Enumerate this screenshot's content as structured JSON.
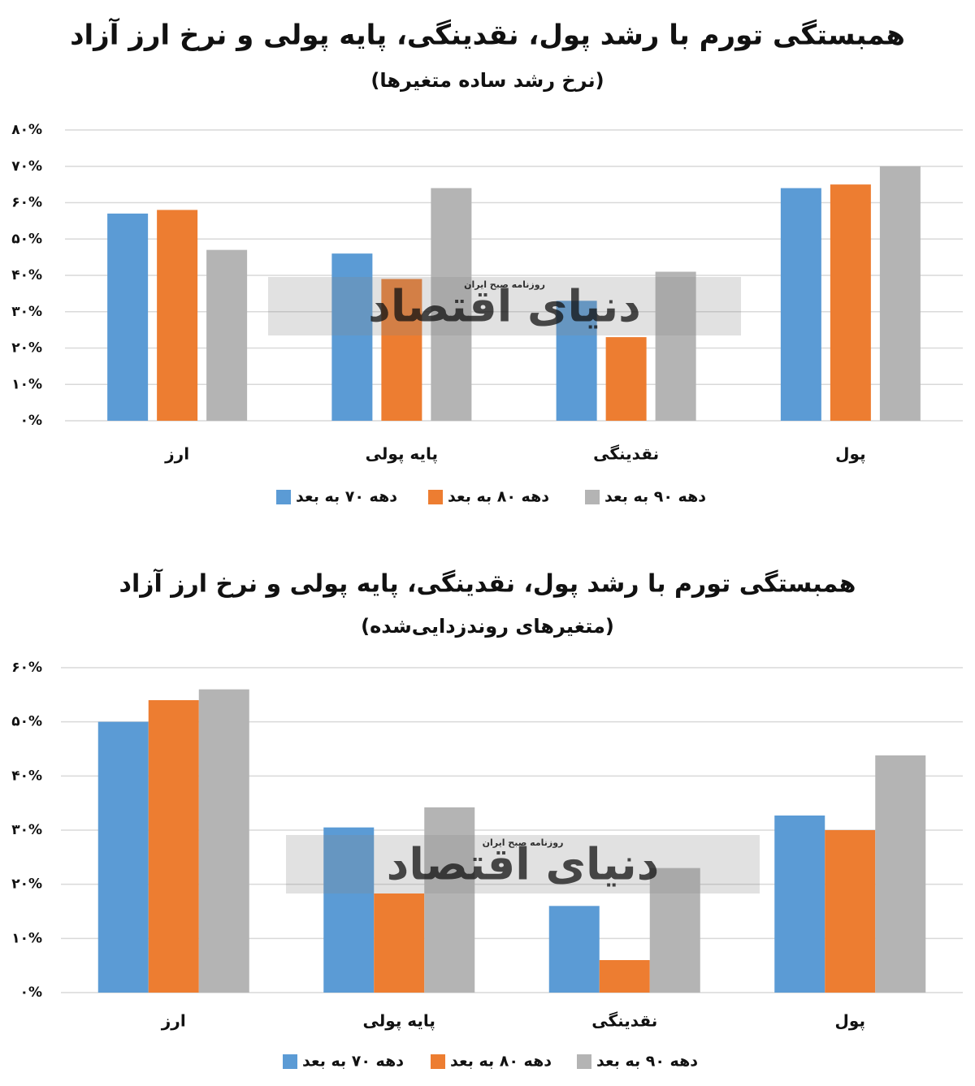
{
  "chart_data": [
    {
      "type": "bar",
      "title": "همبستگی تورم با رشد پول، نقدینگی، پایه پولی و نرخ ارز آزاد",
      "subtitle": "(نرخ رشد ساده متغیرها)",
      "categories": [
        "ارز",
        "پایه پولی",
        "نقدینگی",
        "پول"
      ],
      "series": [
        {
          "name": "دهه ۷۰ به بعد",
          "color": "#5b9bd5",
          "values": [
            57,
            46,
            33,
            64
          ]
        },
        {
          "name": "دهه ۸۰ به بعد",
          "color": "#ed7d31",
          "values": [
            58,
            39,
            23,
            65
          ]
        },
        {
          "name": "دهه ۹۰ به بعد",
          "color": "#b4b4b4",
          "values": [
            47,
            64,
            41,
            70
          ]
        }
      ],
      "ylim": [
        0,
        80
      ],
      "yticks": [
        {
          "value": 0,
          "label": "۰%"
        },
        {
          "value": 10,
          "label": "۱۰%"
        },
        {
          "value": 20,
          "label": "۲۰%"
        },
        {
          "value": 30,
          "label": "۳۰%"
        },
        {
          "value": 40,
          "label": "۴۰%"
        },
        {
          "value": 50,
          "label": "۵۰%"
        },
        {
          "value": 60,
          "label": "۶۰%"
        },
        {
          "value": 70,
          "label": "۷۰%"
        },
        {
          "value": 80,
          "label": "۸۰%"
        }
      ],
      "grid": true,
      "legend": "bottom"
    },
    {
      "type": "bar",
      "title": "همبستگی تورم با رشد پول، نقدینگی، پایه پولی و نرخ ارز آزاد",
      "subtitle": "(متغیرهای روندزدایی‌شده)",
      "categories": [
        "ارز",
        "پایه پولی",
        "نقدینگی",
        "پول"
      ],
      "series": [
        {
          "name": "دهه ۷۰ به بعد",
          "color": "#5b9bd5",
          "values": [
            50,
            30.5,
            16,
            32.7
          ]
        },
        {
          "name": "دهه ۸۰ به بعد",
          "color": "#ed7d31",
          "values": [
            54,
            18.3,
            6,
            30
          ]
        },
        {
          "name": "دهه ۹۰ به بعد",
          "color": "#b4b4b4",
          "values": [
            56,
            34.2,
            23,
            43.8
          ]
        }
      ],
      "ylim": [
        0,
        60
      ],
      "yticks": [
        {
          "value": 0,
          "label": "۰%"
        },
        {
          "value": 10,
          "label": "۱۰%"
        },
        {
          "value": 20,
          "label": "۲۰%"
        },
        {
          "value": 30,
          "label": "۳۰%"
        },
        {
          "value": 40,
          "label": "۴۰%"
        },
        {
          "value": 50,
          "label": "۵۰%"
        },
        {
          "value": 60,
          "label": "۶۰%"
        }
      ],
      "grid": true,
      "legend": "bottom"
    }
  ],
  "watermark": {
    "title": "دنیای اقتصاد",
    "subtitle": "روزنامه صبح ایران"
  }
}
